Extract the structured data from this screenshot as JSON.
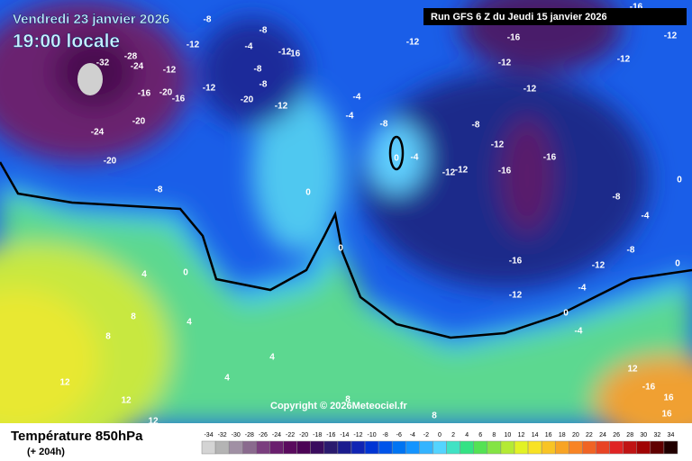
{
  "header": {
    "date": "Vendredi 23 janvier 2026",
    "time": "19:00 locale",
    "run": "Run GFS 6 Z du Jeudi 15 janvier 2026"
  },
  "copyright": "Copyright © 2026Meteociel.fr",
  "footer": {
    "title": "Température 850hPa",
    "subtitle": "(+ 204h)"
  },
  "scale": {
    "labels": [
      -34,
      -32,
      -30,
      -28,
      -26,
      -24,
      -22,
      -20,
      -18,
      -16,
      -14,
      -12,
      -10,
      -8,
      -6,
      -4,
      -2,
      0,
      2,
      4,
      6,
      8,
      10,
      12,
      14,
      16,
      18,
      20,
      22,
      24,
      26,
      28,
      30,
      32,
      34
    ],
    "colors": [
      "#d4d4d4",
      "#b4b4b4",
      "#a090a4",
      "#8a6a8e",
      "#7a3e7e",
      "#6a1e6e",
      "#5a0a5e",
      "#4c0456",
      "#3a0c5e",
      "#2a1a6e",
      "#1a1c8e",
      "#1024b4",
      "#0034d4",
      "#0054ea",
      "#0074f2",
      "#1494ff",
      "#34b4ff",
      "#54d4ff",
      "#40e2c4",
      "#34e284",
      "#54e254",
      "#84e444",
      "#b4ea34",
      "#e2f224",
      "#f8e224",
      "#f8c424",
      "#f8a424",
      "#f88424",
      "#f06424",
      "#e84424",
      "#e02424",
      "#c01414",
      "#a00404",
      "#600000",
      "#200000"
    ]
  },
  "map_labels": [
    "-8",
    "-12",
    "-28",
    "-24",
    "-32",
    "-12",
    "-16",
    "-20",
    "-16",
    "-12",
    "-20",
    "-24",
    "-20",
    "-8",
    "-4",
    "-8",
    "-12",
    "-16",
    "-8",
    "-8",
    "-20",
    "-12",
    "-4",
    "-4",
    "-8",
    "-4",
    "0",
    "-12",
    "-12",
    "-12",
    "-16",
    "-12",
    "-12",
    "-8",
    "-12",
    "-16",
    "-16",
    "-8",
    "-12",
    "-16",
    "-12",
    "-4",
    "0",
    "-4",
    "0",
    "0",
    "4",
    "4",
    "8",
    "8",
    "12",
    "12",
    "12",
    "4",
    "4",
    "8",
    "8",
    "16",
    "16",
    "12",
    "-16",
    "-12",
    "-12",
    "-16",
    "0",
    "0",
    "0",
    "-4",
    "-8"
  ]
}
